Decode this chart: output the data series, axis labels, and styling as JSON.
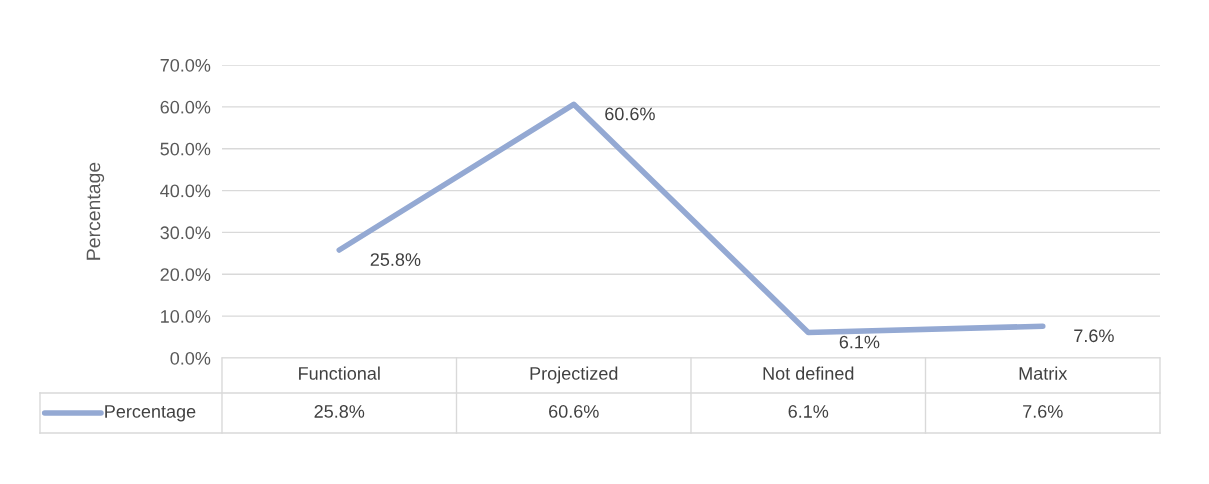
{
  "chart_data": {
    "type": "line",
    "ylabel": "Percentage",
    "categories": [
      "Functional",
      "Projectized",
      "Not defined",
      "Matrix"
    ],
    "series": [
      {
        "name": "Percentage",
        "color": "#94a9d3",
        "values": [
          25.8,
          60.6,
          6.1,
          7.6
        ],
        "value_labels": [
          "25.8%",
          "60.6%",
          "6.1%",
          "7.6%"
        ]
      }
    ],
    "ylim": [
      0,
      70
    ],
    "yticks": [
      {
        "value": 0,
        "label": "0.0%"
      },
      {
        "value": 10,
        "label": "10.0%"
      },
      {
        "value": 20,
        "label": "20.0%"
      },
      {
        "value": 30,
        "label": "30.0%"
      },
      {
        "value": 40,
        "label": "40.0%"
      },
      {
        "value": 50,
        "label": "50.0%"
      },
      {
        "value": 60,
        "label": "60.0%"
      },
      {
        "value": 70,
        "label": "70.0%"
      }
    ],
    "grid": "y",
    "legend": "bottom",
    "marker": "none",
    "line_style": "solid"
  }
}
